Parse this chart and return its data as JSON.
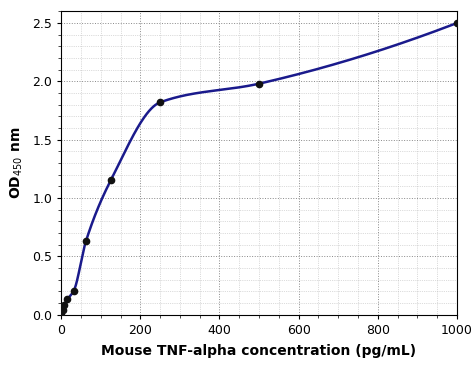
{
  "x_data": [
    0,
    3.9,
    7.8,
    15.6,
    31.25,
    62.5,
    125,
    250,
    500,
    1000
  ],
  "y_data": [
    0.0,
    0.04,
    0.08,
    0.13,
    0.2,
    0.63,
    1.15,
    1.82,
    1.98,
    2.5
  ],
  "line_color": "#1a1a8c",
  "marker_color": "#111111",
  "marker_size": 4.5,
  "line_width": 1.8,
  "xlabel": "Mouse TNF-alpha concentration (pg/mL)",
  "ylabel": "OD₄₅₀ nm",
  "xlim": [
    0,
    1000
  ],
  "ylim": [
    0,
    2.6
  ],
  "xticks": [
    0,
    200,
    400,
    600,
    800,
    1000
  ],
  "yticks": [
    0,
    0.5,
    1.0,
    1.5,
    2.0,
    2.5
  ],
  "major_grid_color": "#888888",
  "minor_grid_color": "#bbbbbb",
  "grid_linestyle": ":",
  "major_grid_linewidth": 0.7,
  "minor_grid_linewidth": 0.5,
  "background_color": "#ffffff",
  "xlabel_fontsize": 10,
  "ylabel_fontsize": 10,
  "tick_fontsize": 9,
  "x_minor_spacing": 50,
  "y_minor_spacing": 0.1
}
